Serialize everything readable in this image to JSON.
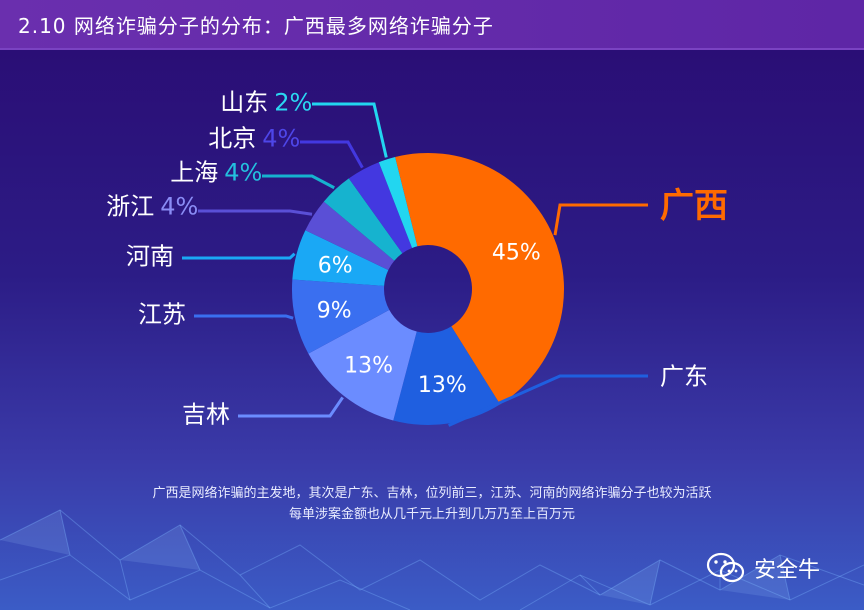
{
  "header": {
    "title": "2.10 网络诈骗分子的分布：广西最多网络诈骗分子"
  },
  "chart_data": {
    "type": "pie",
    "categories": [
      "广西",
      "广东",
      "吉林",
      "江苏",
      "河南",
      "浙江",
      "上海",
      "北京",
      "山东"
    ],
    "values": [
      45,
      13,
      13,
      9,
      6,
      4,
      4,
      4,
      2
    ],
    "slice_labels": [
      "45%",
      "13%",
      "13%",
      "9%",
      "6%",
      "",
      "",
      "",
      ""
    ],
    "side_labels": [
      {
        "name": "广西",
        "pct": ""
      },
      {
        "name": "广东",
        "pct": ""
      },
      {
        "name": "吉林",
        "pct": ""
      },
      {
        "name": "江苏",
        "pct": ""
      },
      {
        "name": "河南",
        "pct": ""
      },
      {
        "name": "浙江",
        "pct": "4%"
      },
      {
        "name": "上海",
        "pct": "4%"
      },
      {
        "name": "北京",
        "pct": "4%"
      },
      {
        "name": "山东",
        "pct": "2%"
      }
    ],
    "colors": [
      "#ff6a00",
      "#1f5fe0",
      "#6b8cff",
      "#3a6ff0",
      "#1aa8f5",
      "#5a4fd6",
      "#16b3cf",
      "#4338e0",
      "#22d6f0"
    ],
    "label_colors": [
      "#ff6a00",
      "#ffffff",
      "#ffffff",
      "#ffffff",
      "#ffffff",
      "#8a8cf5",
      "#23c0de",
      "#4e46e8",
      "#2ad8f2"
    ],
    "donut": true
  },
  "caption": {
    "line1": "广西是网络诈骗的主发地，其次是广东、吉林，位列前三，江苏、河南的网络诈骗分子也较为活跃",
    "line2": "每单涉案金额也从几千元上升到几万乃至上百万元"
  },
  "brand": {
    "name": "安全牛",
    "icon": "wechat-icon"
  }
}
